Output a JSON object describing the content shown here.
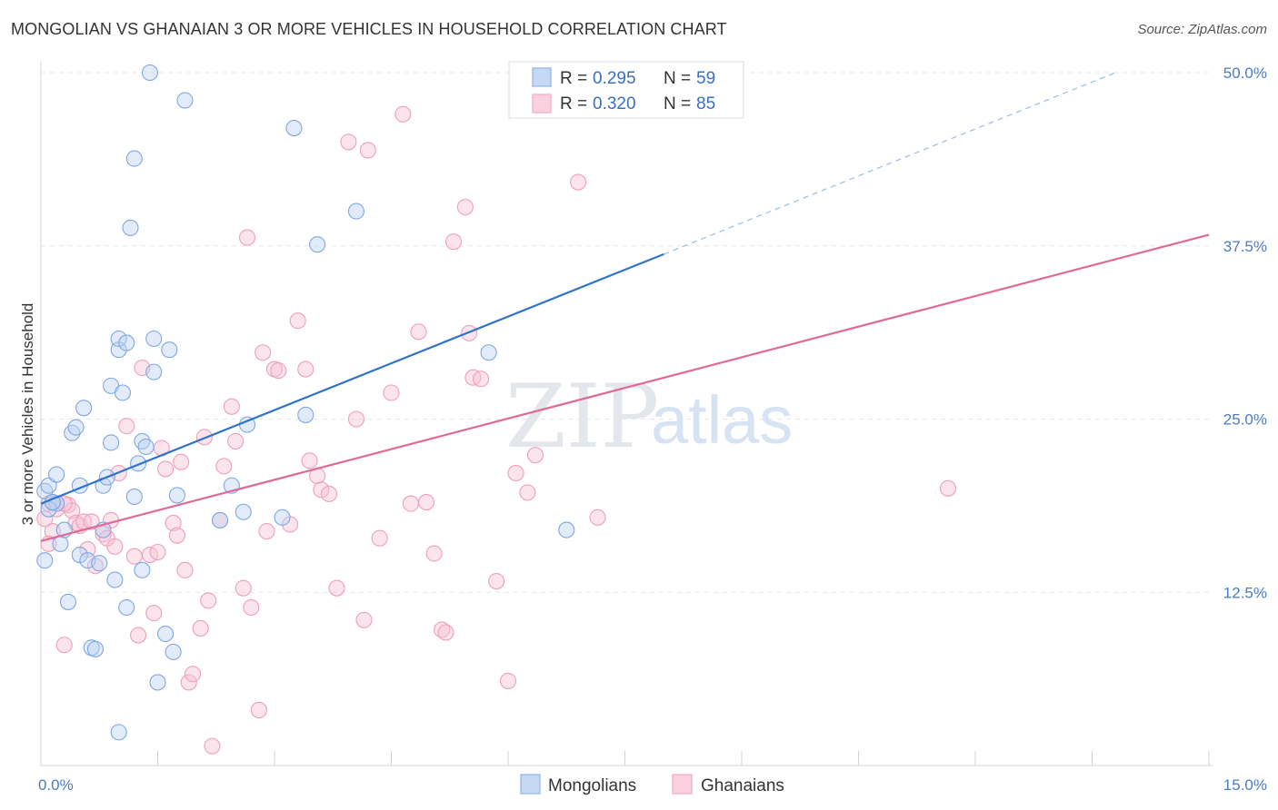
{
  "header": {
    "title": "MONGOLIAN VS GHANAIAN 3 OR MORE VEHICLES IN HOUSEHOLD CORRELATION CHART",
    "source": "Source: ZipAtlas.com"
  },
  "watermark": {
    "zip": "ZIP",
    "atlas": "atlas"
  },
  "legend": {
    "rows": [
      {
        "r_label": "R =",
        "r_value": "0.295",
        "n_label": "N =",
        "n_value": "59"
      },
      {
        "r_label": "R =",
        "r_value": "0.320",
        "n_label": "N =",
        "n_value": "85"
      }
    ]
  },
  "chart_data": {
    "type": "scatter",
    "title": "MONGOLIAN VS GHANAIAN 3 OR MORE VEHICLES IN HOUSEHOLD CORRELATION CHART",
    "xlabel": "",
    "ylabel": "3 or more Vehicles in Household",
    "xlim": [
      0,
      15
    ],
    "ylim": [
      0,
      50
    ],
    "x_tick_labels": [
      "0.0%",
      "15.0%"
    ],
    "y_ticks": [
      12.5,
      25.0,
      37.5,
      50.0
    ],
    "y_tick_labels": [
      "12.5%",
      "25.0%",
      "37.5%",
      "50.0%"
    ],
    "grid": true,
    "legend_position": "bottom",
    "colors": {
      "Mongolians": "#8fb4ea",
      "Ghanaians": "#f3a9c1",
      "mongolian_line": "#2f73cc",
      "ghanaian_line": "#e06a96"
    },
    "series": [
      {
        "name": "Mongolians",
        "r": 0.295,
        "n": 59,
        "trend": {
          "x0": 0.0,
          "y0": 18.9,
          "x1": 8.0,
          "y1": 36.9,
          "dashed_to_x": 13.8,
          "dashed_to_y": 50.0
        },
        "points": [
          [
            0.05,
            19.8
          ],
          [
            0.1,
            20.2
          ],
          [
            0.15,
            19.0
          ],
          [
            0.2,
            21.0
          ],
          [
            0.05,
            14.8
          ],
          [
            0.25,
            16.0
          ],
          [
            0.3,
            17.0
          ],
          [
            0.35,
            11.8
          ],
          [
            0.4,
            24.0
          ],
          [
            0.45,
            24.4
          ],
          [
            0.5,
            15.2
          ],
          [
            0.55,
            25.8
          ],
          [
            0.5,
            20.2
          ],
          [
            0.6,
            14.8
          ],
          [
            0.65,
            8.5
          ],
          [
            0.7,
            8.4
          ],
          [
            0.75,
            14.6
          ],
          [
            0.8,
            17.0
          ],
          [
            0.8,
            20.2
          ],
          [
            0.85,
            20.8
          ],
          [
            0.9,
            23.3
          ],
          [
            0.9,
            27.4
          ],
          [
            0.95,
            13.4
          ],
          [
            1.0,
            30.0
          ],
          [
            1.0,
            30.8
          ],
          [
            1.05,
            26.9
          ],
          [
            1.1,
            11.4
          ],
          [
            1.15,
            38.8
          ],
          [
            1.1,
            30.5
          ],
          [
            1.2,
            19.4
          ],
          [
            1.2,
            43.8
          ],
          [
            1.25,
            21.8
          ],
          [
            1.3,
            23.4
          ],
          [
            1.3,
            14.1
          ],
          [
            1.35,
            23.0
          ],
          [
            1.4,
            50.0
          ],
          [
            1.45,
            28.4
          ],
          [
            1.45,
            30.8
          ],
          [
            1.5,
            6.0
          ],
          [
            1.6,
            9.5
          ],
          [
            1.65,
            30.0
          ],
          [
            1.7,
            8.2
          ],
          [
            1.75,
            19.5
          ],
          [
            1.85,
            48.0
          ],
          [
            2.3,
            17.7
          ],
          [
            2.45,
            20.2
          ],
          [
            2.6,
            18.3
          ],
          [
            2.65,
            24.6
          ],
          [
            3.1,
            17.9
          ],
          [
            3.25,
            46.0
          ],
          [
            3.4,
            25.3
          ],
          [
            3.55,
            37.6
          ],
          [
            4.05,
            40.0
          ],
          [
            5.75,
            29.8
          ],
          [
            6.75,
            17.0
          ],
          [
            1.0,
            2.4
          ],
          [
            0.2,
            18.9
          ],
          [
            0.1,
            18.5
          ],
          [
            0.15,
            19.0
          ]
        ]
      },
      {
        "name": "Ghanaians",
        "r": 0.32,
        "n": 85,
        "trend": {
          "x0": 0.0,
          "y0": 16.2,
          "x1": 15.0,
          "y1": 38.3
        },
        "points": [
          [
            0.05,
            17.8
          ],
          [
            0.1,
            18.9
          ],
          [
            0.15,
            16.9
          ],
          [
            0.2,
            18.5
          ],
          [
            0.3,
            8.7
          ],
          [
            0.35,
            18.8
          ],
          [
            0.4,
            18.4
          ],
          [
            0.45,
            17.5
          ],
          [
            0.5,
            17.3
          ],
          [
            0.55,
            17.6
          ],
          [
            0.6,
            15.6
          ],
          [
            0.65,
            17.6
          ],
          [
            0.7,
            14.4
          ],
          [
            0.8,
            16.7
          ],
          [
            0.85,
            16.4
          ],
          [
            0.9,
            17.7
          ],
          [
            0.95,
            15.8
          ],
          [
            1.0,
            21.1
          ],
          [
            1.1,
            24.5
          ],
          [
            1.2,
            15.1
          ],
          [
            1.25,
            9.4
          ],
          [
            1.3,
            28.7
          ],
          [
            1.4,
            15.2
          ],
          [
            1.45,
            11.0
          ],
          [
            1.5,
            15.4
          ],
          [
            1.55,
            22.9
          ],
          [
            1.6,
            21.4
          ],
          [
            1.7,
            17.5
          ],
          [
            1.75,
            16.6
          ],
          [
            1.8,
            21.9
          ],
          [
            1.85,
            14.1
          ],
          [
            1.9,
            6.0
          ],
          [
            1.95,
            6.6
          ],
          [
            2.05,
            9.9
          ],
          [
            2.1,
            23.7
          ],
          [
            2.15,
            11.9
          ],
          [
            2.2,
            1.4
          ],
          [
            2.3,
            17.7
          ],
          [
            2.35,
            21.6
          ],
          [
            2.45,
            25.9
          ],
          [
            2.5,
            23.4
          ],
          [
            2.6,
            12.8
          ],
          [
            2.65,
            38.1
          ],
          [
            2.7,
            11.4
          ],
          [
            2.8,
            4.0
          ],
          [
            2.85,
            29.8
          ],
          [
            2.9,
            16.9
          ],
          [
            3.0,
            28.6
          ],
          [
            3.05,
            28.5
          ],
          [
            3.2,
            17.4
          ],
          [
            3.3,
            32.1
          ],
          [
            3.4,
            28.6
          ],
          [
            3.45,
            22.0
          ],
          [
            3.55,
            20.9
          ],
          [
            3.6,
            19.9
          ],
          [
            3.7,
            19.6
          ],
          [
            3.8,
            12.8
          ],
          [
            3.95,
            45.0
          ],
          [
            4.05,
            25.0
          ],
          [
            4.15,
            10.5
          ],
          [
            4.2,
            44.4
          ],
          [
            4.35,
            16.4
          ],
          [
            4.5,
            26.9
          ],
          [
            4.65,
            47.0
          ],
          [
            4.75,
            18.9
          ],
          [
            4.85,
            31.3
          ],
          [
            4.95,
            19.0
          ],
          [
            5.05,
            15.3
          ],
          [
            5.15,
            9.8
          ],
          [
            5.2,
            9.6
          ],
          [
            5.3,
            37.8
          ],
          [
            5.45,
            40.3
          ],
          [
            5.5,
            31.2
          ],
          [
            5.55,
            28.0
          ],
          [
            5.65,
            27.9
          ],
          [
            5.85,
            13.3
          ],
          [
            6.0,
            6.1
          ],
          [
            6.1,
            21.1
          ],
          [
            6.25,
            19.7
          ],
          [
            6.35,
            22.4
          ],
          [
            6.9,
            42.1
          ],
          [
            7.15,
            17.9
          ],
          [
            11.65,
            20.0
          ],
          [
            0.1,
            16.0
          ],
          [
            0.3,
            18.9
          ]
        ]
      }
    ]
  },
  "bottom_legend": [
    {
      "label": "Mongolians"
    },
    {
      "label": "Ghanaians"
    }
  ]
}
